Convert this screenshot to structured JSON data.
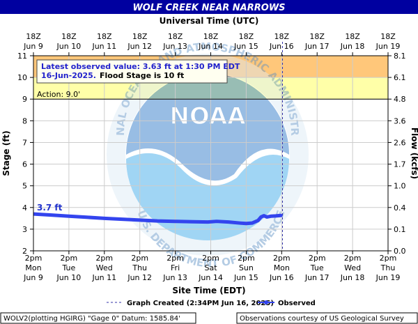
{
  "chart_data": {
    "type": "line",
    "title": "WOLF CREEK NEAR NARROWS",
    "top_axis_title": "Universal Time (UTC)",
    "xlabel": "Site Time (EDT)",
    "ylabel": "Stage (ft)",
    "y2label": "Flow (kcfs)",
    "ylim": [
      2,
      11
    ],
    "xlim": [
      "2025-06-09 14:00",
      "2025-06-19 14:00"
    ],
    "y_ticks": [
      "2",
      "3",
      "4",
      "5",
      "6",
      "7",
      "8",
      "9",
      "10",
      "11"
    ],
    "y2_ticks": [
      {
        "stage": 2,
        "label": "0.0"
      },
      {
        "stage": 3,
        "label": "0.1"
      },
      {
        "stage": 4,
        "label": "0.4"
      },
      {
        "stage": 5,
        "label": "1.0"
      },
      {
        "stage": 6,
        "label": "1.7"
      },
      {
        "stage": 7,
        "label": "2.6"
      },
      {
        "stage": 8,
        "label": "3.6"
      },
      {
        "stage": 9,
        "label": "4.8"
      },
      {
        "stage": 10,
        "label": "6.1"
      },
      {
        "stage": 11,
        "label": "8.1"
      }
    ],
    "bottom_ticks": [
      {
        "l1": "2pm",
        "l2": "Mon",
        "l3": "Jun 9"
      },
      {
        "l1": "2pm",
        "l2": "Tue",
        "l3": "Jun 10"
      },
      {
        "l1": "2pm",
        "l2": "Wed",
        "l3": "Jun 11"
      },
      {
        "l1": "2pm",
        "l2": "Thu",
        "l3": "Jun 12"
      },
      {
        "l1": "2pm",
        "l2": "Fri",
        "l3": "Jun 13"
      },
      {
        "l1": "2pm",
        "l2": "Sat",
        "l3": "Jun 14"
      },
      {
        "l1": "2pm",
        "l2": "Sun",
        "l3": "Jun 15"
      },
      {
        "l1": "2pm",
        "l2": "Mon",
        "l3": "Jun 16"
      },
      {
        "l1": "2pm",
        "l2": "Tue",
        "l3": "Jun 17"
      },
      {
        "l1": "2pm",
        "l2": "Wed",
        "l3": "Jun 18"
      },
      {
        "l1": "2pm",
        "l2": "Thu",
        "l3": "Jun 19"
      }
    ],
    "top_ticks": [
      {
        "l1": "18Z",
        "l2": "Jun 9"
      },
      {
        "l1": "18Z",
        "l2": "Jun 10"
      },
      {
        "l1": "18Z",
        "l2": "Jun 11"
      },
      {
        "l1": "18Z",
        "l2": "Jun 12"
      },
      {
        "l1": "18Z",
        "l2": "Jun 13"
      },
      {
        "l1": "18Z",
        "l2": "Jun 14"
      },
      {
        "l1": "18Z",
        "l2": "Jun 15"
      },
      {
        "l1": "18Z",
        "l2": "Jun 16"
      },
      {
        "l1": "18Z",
        "l2": "Jun 17"
      },
      {
        "l1": "18Z",
        "l2": "Jun 18"
      },
      {
        "l1": "18Z",
        "l2": "Jun 19"
      }
    ],
    "bands": [
      {
        "from": 10,
        "to": 11,
        "color": "#ffc77a"
      },
      {
        "from": 9,
        "to": 10,
        "color": "#ffffa8"
      }
    ],
    "thresholds": [
      {
        "stage": 9,
        "label": "Action: 9.0'"
      }
    ],
    "graph_created_x": "2025-06-16 14:34",
    "series": [
      {
        "name": "Observed",
        "color": "#3333ee",
        "points": [
          [
            "2025-06-09 14:00",
            3.7
          ],
          [
            "2025-06-10 02:00",
            3.65
          ],
          [
            "2025-06-10 14:00",
            3.6
          ],
          [
            "2025-06-11 02:00",
            3.55
          ],
          [
            "2025-06-11 14:00",
            3.5
          ],
          [
            "2025-06-12 02:00",
            3.46
          ],
          [
            "2025-06-12 14:00",
            3.42
          ],
          [
            "2025-06-13 02:00",
            3.38
          ],
          [
            "2025-06-13 14:00",
            3.36
          ],
          [
            "2025-06-14 02:00",
            3.34
          ],
          [
            "2025-06-14 12:00",
            3.33
          ],
          [
            "2025-06-14 18:00",
            3.36
          ],
          [
            "2025-06-15 02:00",
            3.33
          ],
          [
            "2025-06-15 10:00",
            3.28
          ],
          [
            "2025-06-15 14:00",
            3.26
          ],
          [
            "2025-06-15 18:00",
            3.28
          ],
          [
            "2025-06-15 22:00",
            3.4
          ],
          [
            "2025-06-16 00:00",
            3.56
          ],
          [
            "2025-06-16 02:00",
            3.62
          ],
          [
            "2025-06-16 04:00",
            3.56
          ],
          [
            "2025-06-16 07:00",
            3.6
          ],
          [
            "2025-06-16 10:00",
            3.61
          ],
          [
            "2025-06-16 13:30",
            3.63
          ]
        ]
      }
    ],
    "start_label": "3.7 ft",
    "annotation": {
      "line1": "Latest observed value: 3.63 ft at 1:30 PM EDT",
      "line2_date": "16-Jun-2025.",
      "line2_rest": "Flood Stage is 10 ft"
    },
    "legend": {
      "graph_created": "Graph Created (2:34PM Jun 16, 2025)",
      "observed": "Observed"
    },
    "footer_left": "WOLV2(plotting HGIRG) \"Gage 0\" Datum: 1585.84'",
    "footer_right": "Observations courtesy of US Geological Survey",
    "watermark": {
      "logo_text": "NOAA",
      "ring_text": "NATIONAL OCEANIC AND ATMOSPHERIC ADMINISTRATION",
      "bottom_text": "U.S. DEPARTMENT OF COMMERCE"
    },
    "colors": {
      "title_bar": "#0000a0",
      "axis_text": "#000000",
      "plot_bg": "#ffffff",
      "grid": "#cccccc",
      "annotation_bg": "#fffff0",
      "annotation_text": "#2222cc"
    }
  }
}
